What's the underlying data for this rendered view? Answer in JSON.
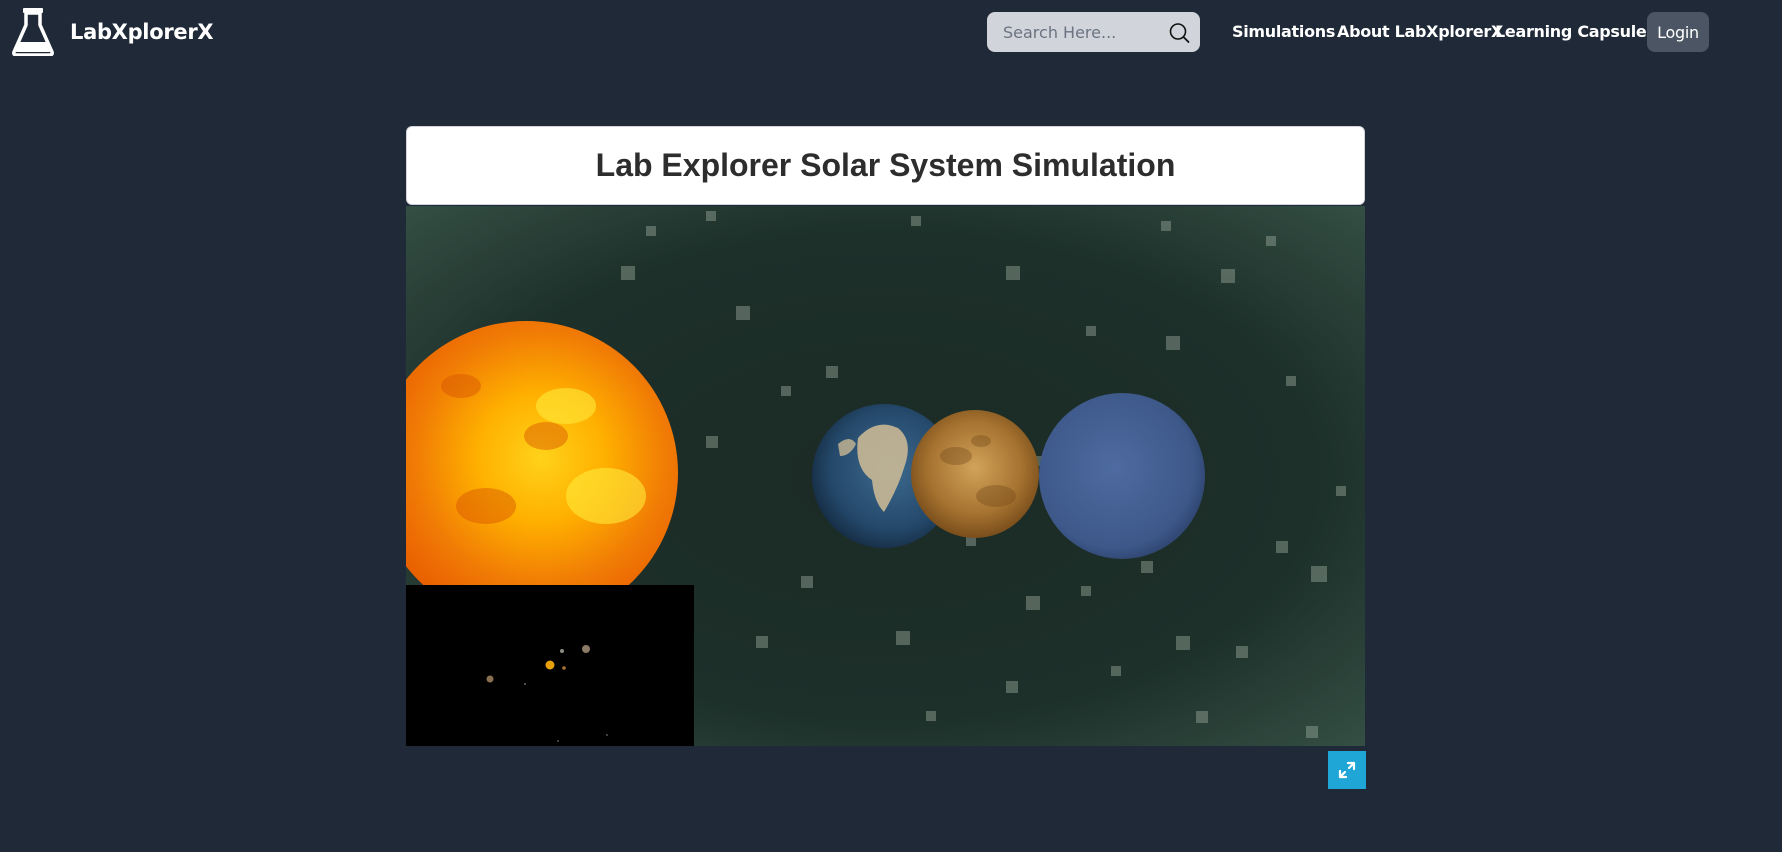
{
  "header": {
    "brand": "LabXplorerX",
    "logo_icon": "flask-icon",
    "search": {
      "placeholder": "Search Here...",
      "value": ""
    },
    "nav": {
      "simulations": "Simulations",
      "about": "About LabXplorerX",
      "capsules": "Learning Capsules",
      "login": "Login"
    }
  },
  "main": {
    "title": "Lab Explorer Solar System Simulation",
    "fullscreen_icon": "expand-icon"
  },
  "colors": {
    "page_bg": "#1f2937",
    "search_bg": "#d1d5db",
    "login_bg": "#4b5563",
    "fullscreen_bg": "#1fa6d6"
  }
}
